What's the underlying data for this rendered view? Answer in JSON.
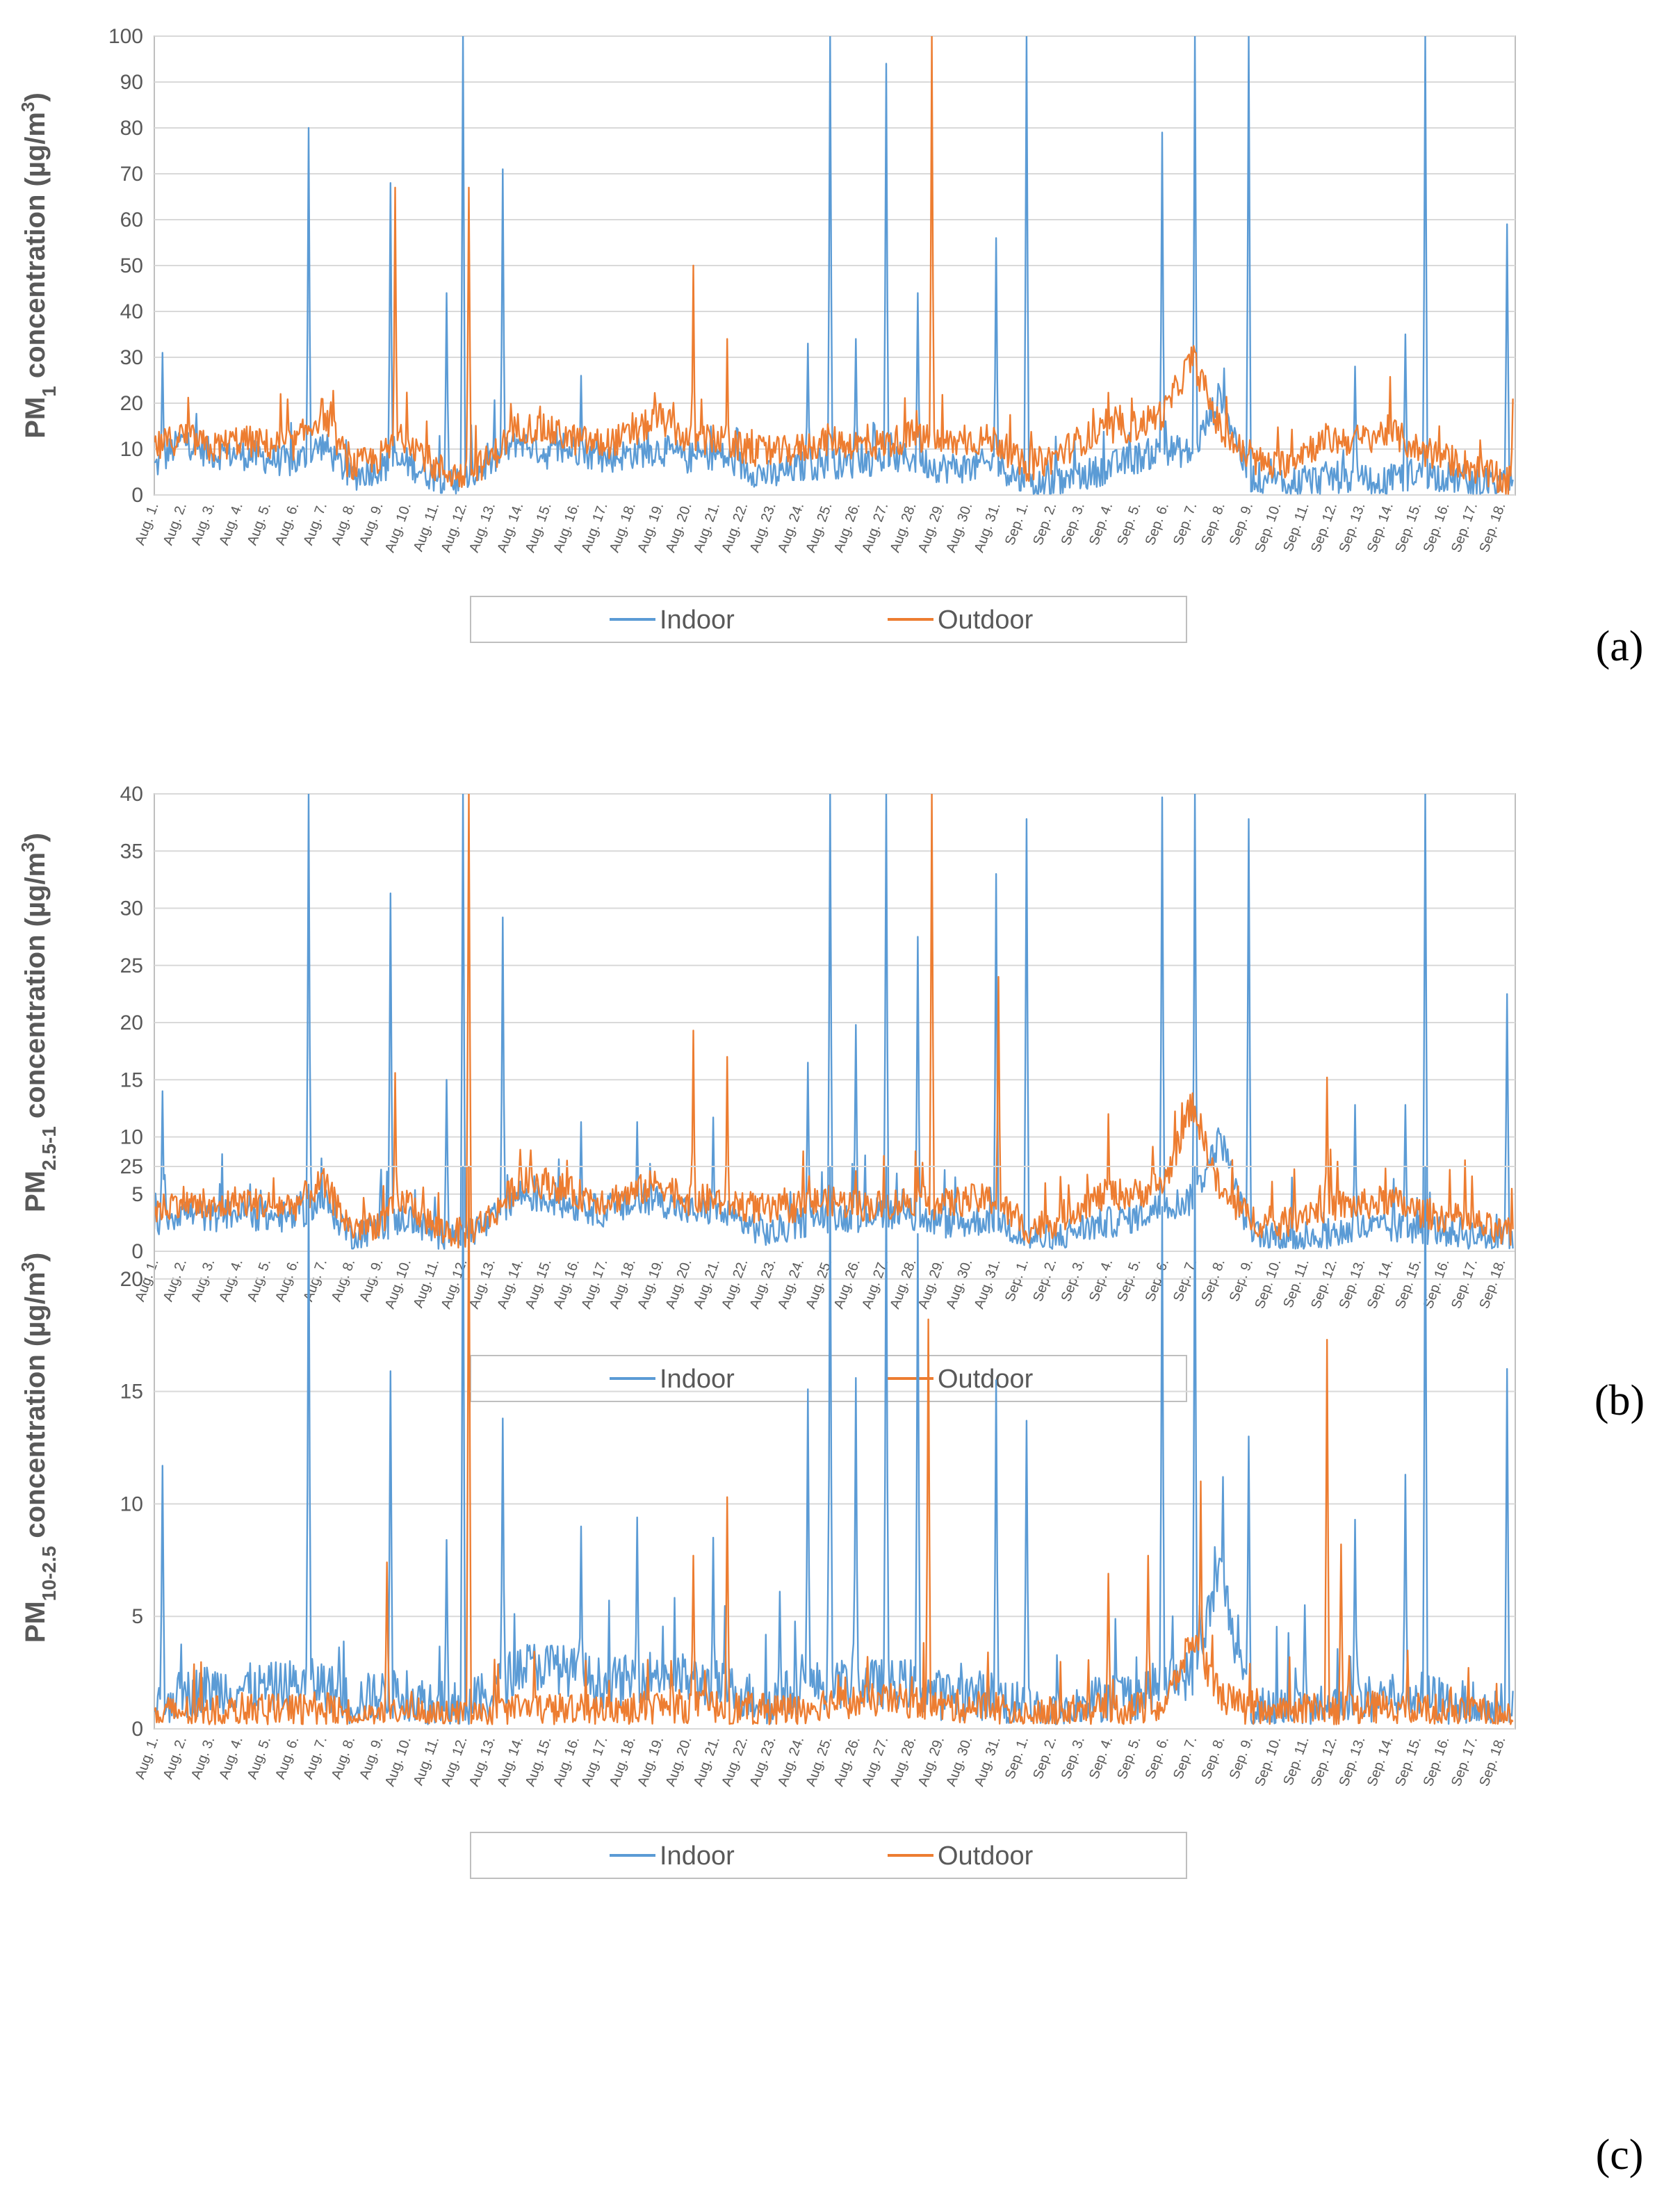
{
  "colors": {
    "indoor": "#5B9BD5",
    "outdoor": "#ED7D31",
    "grid": "#D9D9D9",
    "axis": "#BFBFBF",
    "text": "#595959"
  },
  "legend": {
    "indoor": "Indoor",
    "outdoor": "Outdoor"
  },
  "chart_data": [
    {
      "type": "line",
      "panel": "(a)",
      "ylabel_main": "PM",
      "ylabel_sub": "1",
      "ylabel_rest": " concentration (µg/m",
      "ylabel_sup": "3",
      "ylabel_end": ")",
      "ylim": [
        0,
        100
      ],
      "yticks": [
        "0",
        "10",
        "20",
        "30",
        "40",
        "50",
        "60",
        "70",
        "80",
        "90",
        "100"
      ],
      "legend_position": "bottom",
      "categories": [
        "Aug. 1.",
        "Aug. 2.",
        "Aug. 3.",
        "Aug. 4.",
        "Aug. 5.",
        "Aug. 6.",
        "Aug. 7.",
        "Aug. 8.",
        "Aug. 9.",
        "Aug. 10.",
        "Aug. 11.",
        "Aug. 12.",
        "Aug. 13.",
        "Aug. 14.",
        "Aug. 15.",
        "Aug. 16.",
        "Aug. 17.",
        "Aug. 18.",
        "Aug. 19.",
        "Aug. 20.",
        "Aug. 21.",
        "Aug. 22.",
        "Aug. 23.",
        "Aug. 24.",
        "Aug. 25.",
        "Aug. 26.",
        "Aug. 27.",
        "Aug. 28.",
        "Aug. 29.",
        "Aug. 30.",
        "Aug. 31.",
        "Sep. 1.",
        "Sep. 2.",
        "Sep. 3.",
        "Sep. 4.",
        "Sep. 5.",
        "Sep. 6.",
        "Sep. 7.",
        "Sep. 8.",
        "Sep. 9.",
        "Sep. 10.",
        "Sep. 11.",
        "Sep. 12.",
        "Sep. 13.",
        "Sep. 14.",
        "Sep. 15.",
        "Sep. 16.",
        "Sep. 17.",
        "Sep. 18."
      ],
      "series": [
        {
          "name": "Indoor",
          "values": [
            6,
            12,
            9,
            9,
            8,
            7,
            11,
            4,
            6,
            7,
            4,
            3,
            7,
            12,
            9,
            10,
            8,
            9,
            10,
            8,
            9,
            6,
            4,
            6,
            7,
            7,
            8,
            8,
            6,
            6,
            7,
            3,
            2,
            4,
            6,
            8,
            10,
            9,
            22,
            4,
            3,
            3,
            4,
            3,
            3,
            5,
            4,
            3,
            2
          ]
        },
        {
          "name": "Outdoor",
          "values": [
            10,
            13,
            10,
            12,
            11,
            11,
            18,
            6,
            8,
            13,
            6,
            4,
            8,
            15,
            14,
            12,
            11,
            13,
            17,
            12,
            12,
            10,
            9,
            10,
            12,
            11,
            11,
            13,
            11,
            12,
            12,
            6,
            8,
            12,
            14,
            15,
            18,
            30,
            14,
            8,
            6,
            10,
            12,
            12,
            14,
            10,
            8,
            6,
            3
          ]
        }
      ],
      "peaks": [
        {
          "series": "Indoor",
          "day": 1.3,
          "value": 31
        },
        {
          "series": "Indoor",
          "day": 6.5,
          "value": 80
        },
        {
          "series": "Indoor",
          "day": 9.4,
          "value": 68
        },
        {
          "series": "Outdoor",
          "day": 9.6,
          "value": 67
        },
        {
          "series": "Indoor",
          "day": 11.4,
          "value": 44
        },
        {
          "series": "Indoor",
          "day": 12.0,
          "value": 100
        },
        {
          "series": "Outdoor",
          "day": 12.2,
          "value": 67
        },
        {
          "series": "Indoor",
          "day": 13.4,
          "value": 71
        },
        {
          "series": "Indoor",
          "day": 16.2,
          "value": 26
        },
        {
          "series": "Outdoor",
          "day": 20.2,
          "value": 50
        },
        {
          "series": "Outdoor",
          "day": 21.4,
          "value": 34
        },
        {
          "series": "Indoor",
          "day": 24.3,
          "value": 33
        },
        {
          "series": "Indoor",
          "day": 25.1,
          "value": 100
        },
        {
          "series": "Indoor",
          "day": 26.0,
          "value": 34
        },
        {
          "series": "Indoor",
          "day": 27.1,
          "value": 94
        },
        {
          "series": "Indoor",
          "day": 28.2,
          "value": 44
        },
        {
          "series": "Outdoor",
          "day": 28.7,
          "value": 100
        },
        {
          "series": "Indoor",
          "day": 31.0,
          "value": 56
        },
        {
          "series": "Indoor",
          "day": 32.1,
          "value": 100
        },
        {
          "series": "Indoor",
          "day": 36.9,
          "value": 79
        },
        {
          "series": "Indoor",
          "day": 38.1,
          "value": 100
        },
        {
          "series": "Indoor",
          "day": 40.0,
          "value": 100
        },
        {
          "series": "Indoor",
          "day": 43.8,
          "value": 28
        },
        {
          "series": "Indoor",
          "day": 45.6,
          "value": 35
        },
        {
          "series": "Indoor",
          "day": 46.3,
          "value": 100
        },
        {
          "series": "Indoor",
          "day": 49.2,
          "value": 59
        },
        {
          "series": "Outdoor",
          "day": 49.4,
          "value": 21
        }
      ]
    },
    {
      "type": "line",
      "panel": "(b)",
      "ylabel_main": "PM",
      "ylabel_sub": "2.5-1",
      "ylabel_rest": " concentration (µg/m",
      "ylabel_sup": "3",
      "ylabel_end": ")",
      "ylim": [
        0,
        40
      ],
      "yticks": [
        "0",
        "5",
        "10",
        "15",
        "20",
        "25",
        "30",
        "35",
        "40"
      ],
      "legend_position": "bottom",
      "categories": [
        "Aug. 1.",
        "Aug. 2.",
        "Aug. 3.",
        "Aug. 4.",
        "Aug. 5.",
        "Aug. 6.",
        "Aug. 7.",
        "Aug. 8.",
        "Aug. 9.",
        "Aug. 10.",
        "Aug. 11.",
        "Aug. 12.",
        "Aug. 13.",
        "Aug. 14.",
        "Aug. 15.",
        "Aug. 16.",
        "Aug. 17.",
        "Aug. 18.",
        "Aug. 19.",
        "Aug. 20.",
        "Aug. 21.",
        "Aug. 22.",
        "Aug. 23.",
        "Aug. 24.",
        "Aug. 25.",
        "Aug. 26.",
        "Aug. 27.",
        "Aug. 28.",
        "Aug. 29.",
        "Aug. 30.",
        "Aug. 31.",
        "Sep. 1.",
        "Sep. 2.",
        "Sep. 3.",
        "Sep. 4.",
        "Sep. 5.",
        "Sep. 6.",
        "Sep. 7.",
        "Sep. 8.",
        "Sep. 9.",
        "Sep. 10.",
        "Sep. 11.",
        "Sep. 12.",
        "Sep. 13.",
        "Sep. 14.",
        "Sep. 15.",
        "Sep. 16.",
        "Sep. 17.",
        "Sep. 18."
      ],
      "series": [
        {
          "name": "Indoor",
          "values": [
            2.5,
            3.5,
            3,
            3.5,
            3,
            3,
            4.5,
            1.5,
            2,
            3,
            1.5,
            1.5,
            2.5,
            5,
            4.5,
            4,
            3.5,
            4,
            4.5,
            3.5,
            3.5,
            2.5,
            1.5,
            2.5,
            3,
            3,
            3.5,
            3,
            2.5,
            2.5,
            3,
            1.2,
            1,
            2,
            2.5,
            3,
            4,
            4.5,
            10,
            1.5,
            1,
            1.2,
            1.5,
            2,
            2,
            2,
            1.8,
            1.5,
            1
          ]
        },
        {
          "name": "Outdoor",
          "values": [
            3.5,
            4.5,
            3.5,
            4.5,
            4,
            4,
            6,
            2,
            2.5,
            4.5,
            2,
            1.5,
            3,
            6,
            6,
            5,
            4.5,
            5,
            6,
            4.5,
            4.5,
            4,
            3.5,
            4,
            4.5,
            4,
            4,
            4.5,
            4,
            4.5,
            4.5,
            2,
            2.5,
            4,
            5,
            5,
            6,
            13,
            5,
            3,
            2,
            3.5,
            4,
            4,
            4.5,
            3.5,
            3,
            2.5,
            1.5
          ]
        }
      ],
      "peaks": [
        {
          "series": "Indoor",
          "day": 1.3,
          "value": 14
        },
        {
          "series": "Indoor",
          "day": 6.5,
          "value": 40
        },
        {
          "series": "Indoor",
          "day": 9.4,
          "value": 31.3
        },
        {
          "series": "Outdoor",
          "day": 9.6,
          "value": 15.6
        },
        {
          "series": "Indoor",
          "day": 11.4,
          "value": 15
        },
        {
          "series": "Indoor",
          "day": 12.0,
          "value": 40
        },
        {
          "series": "Outdoor",
          "day": 12.2,
          "value": 40
        },
        {
          "series": "Indoor",
          "day": 13.4,
          "value": 29.2
        },
        {
          "series": "Indoor",
          "day": 16.2,
          "value": 11.3
        },
        {
          "series": "Indoor",
          "day": 18.2,
          "value": 11.3
        },
        {
          "series": "Outdoor",
          "day": 20.2,
          "value": 19.3
        },
        {
          "series": "Indoor",
          "day": 20.9,
          "value": 11.7
        },
        {
          "series": "Outdoor",
          "day": 21.4,
          "value": 17
        },
        {
          "series": "Indoor",
          "day": 24.3,
          "value": 16.5
        },
        {
          "series": "Indoor",
          "day": 25.1,
          "value": 40
        },
        {
          "series": "Indoor",
          "day": 26.0,
          "value": 19.8
        },
        {
          "series": "Indoor",
          "day": 27.1,
          "value": 40
        },
        {
          "series": "Indoor",
          "day": 28.2,
          "value": 27.5
        },
        {
          "series": "Outdoor",
          "day": 28.7,
          "value": 40
        },
        {
          "series": "Indoor",
          "day": 31.0,
          "value": 33
        },
        {
          "series": "Outdoor",
          "day": 31.1,
          "value": 24
        },
        {
          "series": "Indoor",
          "day": 32.1,
          "value": 37.8
        },
        {
          "series": "Outdoor",
          "day": 35.0,
          "value": 12
        },
        {
          "series": "Indoor",
          "day": 36.9,
          "value": 39.7
        },
        {
          "series": "Indoor",
          "day": 38.1,
          "value": 40
        },
        {
          "series": "Indoor",
          "day": 40.0,
          "value": 37.8
        },
        {
          "series": "Outdoor",
          "day": 42.8,
          "value": 15.2
        },
        {
          "series": "Indoor",
          "day": 43.8,
          "value": 12.8
        },
        {
          "series": "Indoor",
          "day": 45.6,
          "value": 12.8
        },
        {
          "series": "Indoor",
          "day": 46.3,
          "value": 40
        },
        {
          "series": "Indoor",
          "day": 49.2,
          "value": 22.5
        }
      ]
    },
    {
      "type": "line",
      "panel": "(c)",
      "ylabel_main": "PM",
      "ylabel_sub": "10-2.5",
      "ylabel_rest": " concentration (µg/m",
      "ylabel_sup": "3",
      "ylabel_end": ")",
      "ylim": [
        0,
        25
      ],
      "yticks": [
        "0",
        "5",
        "10",
        "15",
        "20",
        "25"
      ],
      "legend_position": "bottom",
      "categories": [
        "Aug. 1.",
        "Aug. 2.",
        "Aug. 3.",
        "Aug. 4.",
        "Aug. 5.",
        "Aug. 6.",
        "Aug. 7.",
        "Aug. 8.",
        "Aug. 9.",
        "Aug. 10.",
        "Aug. 11.",
        "Aug. 12.",
        "Aug. 13.",
        "Aug. 14.",
        "Aug. 15.",
        "Aug. 16.",
        "Aug. 17.",
        "Aug. 18.",
        "Aug. 19.",
        "Aug. 20.",
        "Aug. 21.",
        "Aug. 22.",
        "Aug. 23.",
        "Aug. 24.",
        "Aug. 25.",
        "Aug. 26.",
        "Aug. 27.",
        "Aug. 28.",
        "Aug. 29.",
        "Aug. 30.",
        "Aug. 31.",
        "Sep. 1.",
        "Sep. 2.",
        "Sep. 3.",
        "Sep. 4.",
        "Sep. 5.",
        "Sep. 6.",
        "Sep. 7.",
        "Sep. 8.",
        "Sep. 9.",
        "Sep. 10.",
        "Sep. 11.",
        "Sep. 12.",
        "Sep. 13.",
        "Sep. 14.",
        "Sep. 15.",
        "Sep. 16.",
        "Sep. 17.",
        "Sep. 18."
      ],
      "series": [
        {
          "name": "Indoor",
          "values": [
            1.2,
            1.5,
            1.8,
            1.8,
            1.8,
            2,
            2,
            1.2,
            1.5,
            1.5,
            1,
            1,
            1.5,
            2.8,
            2.8,
            2.5,
            2,
            2.2,
            2.5,
            2.2,
            2,
            1.5,
            1.2,
            1.8,
            2,
            2,
            2,
            2,
            1.5,
            1.5,
            1.5,
            0.8,
            0.8,
            1,
            1.5,
            1.5,
            2,
            2.5,
            7,
            1,
            0.8,
            1,
            1,
            1.2,
            1.5,
            1.5,
            1.2,
            1,
            0.8
          ]
        },
        {
          "name": "Outdoor",
          "values": [
            0.6,
            0.8,
            0.7,
            0.8,
            0.8,
            0.8,
            1,
            0.5,
            0.6,
            1,
            0.5,
            0.5,
            0.6,
            0.9,
            0.9,
            0.8,
            0.8,
            0.9,
            1,
            1,
            1,
            0.9,
            0.8,
            0.9,
            1.2,
            1.2,
            1.3,
            1.2,
            1,
            1,
            1,
            0.6,
            0.7,
            0.8,
            0.9,
            0.9,
            1,
            4,
            1.5,
            0.8,
            0.6,
            0.8,
            0.9,
            0.9,
            1,
            0.9,
            0.8,
            0.7,
            0.5
          ]
        }
      ],
      "peaks": [
        {
          "series": "Indoor",
          "day": 1.3,
          "value": 11.7
        },
        {
          "series": "Indoor",
          "day": 6.5,
          "value": 24.2
        },
        {
          "series": "Outdoor",
          "day": 9.3,
          "value": 7.4
        },
        {
          "series": "Indoor",
          "day": 9.4,
          "value": 15.9
        },
        {
          "series": "Indoor",
          "day": 11.4,
          "value": 8.4
        },
        {
          "series": "Indoor",
          "day": 12.0,
          "value": 25
        },
        {
          "series": "Outdoor",
          "day": 12.2,
          "value": 25
        },
        {
          "series": "Indoor",
          "day": 13.4,
          "value": 13.8
        },
        {
          "series": "Indoor",
          "day": 16.2,
          "value": 9
        },
        {
          "series": "Indoor",
          "day": 18.2,
          "value": 9.4
        },
        {
          "series": "Outdoor",
          "day": 20.2,
          "value": 7.7
        },
        {
          "series": "Indoor",
          "day": 20.9,
          "value": 8.5
        },
        {
          "series": "Outdoor",
          "day": 21.4,
          "value": 10.3
        },
        {
          "series": "Indoor",
          "day": 23.3,
          "value": 6.1
        },
        {
          "series": "Indoor",
          "day": 24.3,
          "value": 15.1
        },
        {
          "series": "Indoor",
          "day": 25.1,
          "value": 25
        },
        {
          "series": "Indoor",
          "day": 26.0,
          "value": 15.6
        },
        {
          "series": "Indoor",
          "day": 27.1,
          "value": 25
        },
        {
          "series": "Indoor",
          "day": 28.2,
          "value": 22
        },
        {
          "series": "Outdoor",
          "day": 28.6,
          "value": 18.2
        },
        {
          "series": "Indoor",
          "day": 31.0,
          "value": 15.5
        },
        {
          "series": "Indoor",
          "day": 32.1,
          "value": 13.7
        },
        {
          "series": "Outdoor",
          "day": 35.0,
          "value": 6.9
        },
        {
          "series": "Outdoor",
          "day": 36.4,
          "value": 7.7
        },
        {
          "series": "Indoor",
          "day": 36.9,
          "value": 23.2
        },
        {
          "series": "Indoor",
          "day": 38.1,
          "value": 25
        },
        {
          "series": "Outdoor",
          "day": 38.3,
          "value": 11
        },
        {
          "series": "Indoor",
          "day": 39.1,
          "value": 11.2
        },
        {
          "series": "Indoor",
          "day": 40.0,
          "value": 13
        },
        {
          "series": "Indoor",
          "day": 42.0,
          "value": 5.5
        },
        {
          "series": "Outdoor",
          "day": 42.8,
          "value": 17.3
        },
        {
          "series": "Outdoor",
          "day": 43.3,
          "value": 8.2
        },
        {
          "series": "Indoor",
          "day": 43.8,
          "value": 9.3
        },
        {
          "series": "Indoor",
          "day": 45.6,
          "value": 11.3
        },
        {
          "series": "Indoor",
          "day": 46.3,
          "value": 25
        },
        {
          "series": "Indoor",
          "day": 49.2,
          "value": 16
        }
      ]
    }
  ]
}
